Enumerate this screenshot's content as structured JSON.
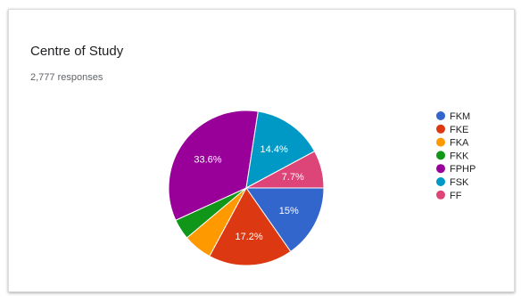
{
  "card": {
    "question": "Centre of Study",
    "responses": "2,777 responses"
  },
  "chart_data": {
    "type": "pie",
    "title": "Centre of Study",
    "legend_position": "right",
    "categories": [
      "FKM",
      "FKE",
      "FKA",
      "FKK",
      "FPHP",
      "FSK",
      "FF"
    ],
    "values": [
      15.0,
      17.2,
      5.9,
      4.2,
      33.6,
      14.4,
      7.7
    ],
    "labels": [
      "15%",
      "17.2%",
      "",
      "",
      "33.6%",
      "14.4%",
      "7.7%"
    ],
    "colors": [
      "#3366cc",
      "#dc3912",
      "#ff9900",
      "#109618",
      "#990099",
      "#0099c6",
      "#dd4477"
    ]
  }
}
